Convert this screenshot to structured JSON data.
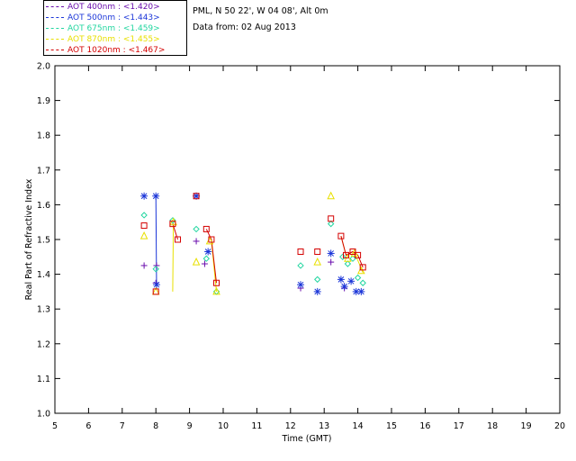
{
  "header": {
    "location": "PML, N 50 22', W 04 08', Alt 0m",
    "date": "Data from: 02 Aug 2013"
  },
  "legend": [
    {
      "label": "AOT  400nm : <1.420>",
      "color": "#6a0dad"
    },
    {
      "label": "AOT  500nm : <1.443>",
      "color": "#1a35d8"
    },
    {
      "label": "AOT  675nm : <1.459>",
      "color": "#22d6a0"
    },
    {
      "label": "AOT  870nm : <1.455>",
      "color": "#e8e000"
    },
    {
      "label": "AOT 1020nm : <1.467>",
      "color": "#d40000"
    }
  ],
  "chart_data": {
    "type": "scatter",
    "xlabel": "Time (GMT)",
    "ylabel": "Real Part of Refractive Index",
    "xlim": [
      5,
      20
    ],
    "ylim": [
      1.0,
      2.0
    ],
    "xticks": [
      5,
      6,
      7,
      8,
      9,
      10,
      11,
      12,
      13,
      14,
      15,
      16,
      17,
      18,
      19,
      20
    ],
    "yticks": [
      1.0,
      1.1,
      1.2,
      1.3,
      1.4,
      1.5,
      1.6,
      1.7,
      1.8,
      1.9,
      2.0
    ],
    "series": [
      {
        "name": "AOT  400nm : <1.420>",
        "marker": "plus",
        "color": "#6a0dad",
        "x": [
          7.65,
          8.0,
          8.02,
          9.2,
          9.45,
          12.3,
          13.2,
          13.6
        ],
        "y": [
          1.425,
          1.375,
          1.425,
          1.495,
          1.43,
          1.36,
          1.435,
          1.36
        ]
      },
      {
        "name": "AOT  500nm : <1.443>",
        "marker": "star",
        "color": "#1a35d8",
        "x": [
          7.65,
          8.0,
          8.02,
          9.2,
          9.55,
          12.3,
          12.8,
          13.2,
          13.5,
          13.6,
          13.8,
          13.95,
          14.1
        ],
        "y": [
          1.625,
          1.625,
          1.37,
          1.625,
          1.465,
          1.37,
          1.35,
          1.46,
          1.385,
          1.365,
          1.38,
          1.35,
          1.35
        ]
      },
      {
        "name": "AOT  675nm : <1.459>",
        "marker": "diamond",
        "color": "#22d6a0",
        "x": [
          7.65,
          8.0,
          8.5,
          9.2,
          9.5,
          9.8,
          12.3,
          12.8,
          13.2,
          13.55,
          13.7,
          13.85,
          14.0,
          14.15
        ],
        "y": [
          1.57,
          1.415,
          1.555,
          1.53,
          1.445,
          1.35,
          1.425,
          1.385,
          1.545,
          1.45,
          1.43,
          1.445,
          1.39,
          1.375
        ]
      },
      {
        "name": "AOT  870nm : <1.455>",
        "marker": "triangle",
        "color": "#e8e000",
        "x": [
          7.65,
          8.0,
          8.52,
          9.2,
          9.6,
          9.8,
          12.8,
          13.2,
          13.7,
          13.9,
          14.1
        ],
        "y": [
          1.51,
          1.35,
          1.55,
          1.435,
          1.495,
          1.35,
          1.435,
          1.625,
          1.445,
          1.46,
          1.41
        ]
      },
      {
        "name": "AOT 1020nm : <1.467>",
        "marker": "square",
        "color": "#d40000",
        "x": [
          7.65,
          8.0,
          8.5,
          8.65,
          9.2,
          9.5,
          9.65,
          9.8,
          12.3,
          12.8,
          13.2,
          13.5,
          13.65,
          13.85,
          14.0,
          14.15
        ],
        "y": [
          1.54,
          1.35,
          1.545,
          1.5,
          1.625,
          1.53,
          1.5,
          1.375,
          1.465,
          1.465,
          1.56,
          1.51,
          1.455,
          1.465,
          1.455,
          1.42
        ]
      }
    ],
    "connectors": [
      {
        "color": "#1a35d8",
        "x": [
          8.0,
          8.02
        ],
        "y": [
          1.625,
          1.37
        ]
      },
      {
        "color": "#e8e000",
        "x": [
          8.5,
          8.52
        ],
        "y": [
          1.35,
          1.55
        ]
      },
      {
        "color": "#d40000",
        "x": [
          8.5,
          8.65
        ],
        "y": [
          1.545,
          1.5
        ]
      },
      {
        "color": "#e8e000",
        "x": [
          9.65,
          9.8
        ],
        "y": [
          1.495,
          1.35
        ]
      },
      {
        "color": "#d40000",
        "x": [
          9.5,
          9.65,
          9.8
        ],
        "y": [
          1.53,
          1.5,
          1.375
        ]
      },
      {
        "color": "#e8e000",
        "x": [
          13.5,
          13.65,
          13.85,
          14.0,
          14.15
        ],
        "y": [
          1.51,
          1.455,
          1.465,
          1.44,
          1.405
        ]
      },
      {
        "color": "#d40000",
        "x": [
          13.5,
          13.65,
          13.85,
          14.0,
          14.15
        ],
        "y": [
          1.51,
          1.455,
          1.465,
          1.455,
          1.42
        ]
      }
    ]
  }
}
